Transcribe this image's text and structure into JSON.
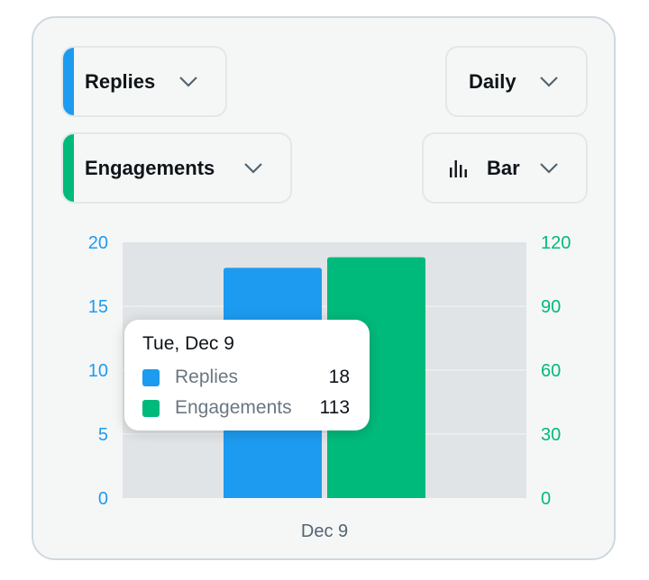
{
  "controls": {
    "metric1": {
      "label": "Replies",
      "color": "#1d9bf0"
    },
    "metric2": {
      "label": "Engagements",
      "color": "#00ba7c"
    },
    "interval": {
      "label": "Daily"
    },
    "chart_type": {
      "label": "Bar",
      "icon": "bar-chart-icon"
    }
  },
  "chart_data": {
    "type": "bar",
    "categories": [
      "Dec 9"
    ],
    "series": [
      {
        "name": "Replies",
        "values": [
          18
        ],
        "axis": "left",
        "color": "#1d9bf0"
      },
      {
        "name": "Engagements",
        "values": [
          113
        ],
        "axis": "right",
        "color": "#00ba7c"
      }
    ],
    "left_axis": {
      "ticks": [
        "0",
        "5",
        "10",
        "15",
        "20"
      ],
      "range": [
        0,
        20
      ],
      "color": "#1d9bf0"
    },
    "right_axis": {
      "ticks": [
        "0",
        "30",
        "60",
        "90",
        "120"
      ],
      "range": [
        0,
        120
      ],
      "color": "#00ba7c"
    },
    "grid": true
  },
  "tooltip": {
    "date": "Tue, Dec 9",
    "rows": [
      {
        "name": "Replies",
        "value": "18",
        "color": "#1d9bf0"
      },
      {
        "name": "Engagements",
        "value": "113",
        "color": "#00ba7c"
      }
    ]
  }
}
